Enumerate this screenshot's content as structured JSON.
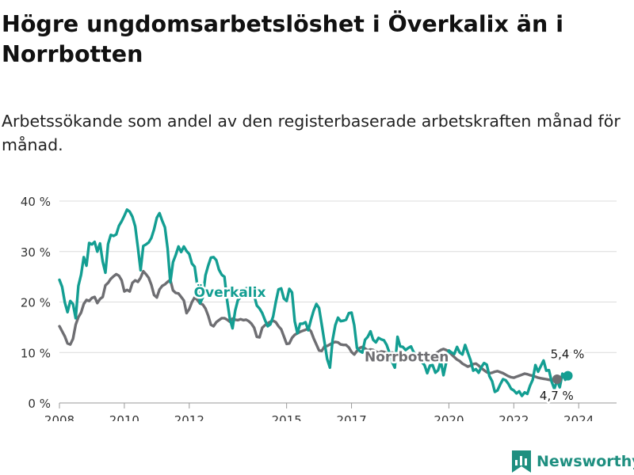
{
  "header": {
    "title": "Högre ungdomsarbetslöshet i Överkalix än i Norrbotten",
    "subtitle": "Arbetssökande som andel av den registerbaserade arbetskraften månad för månad."
  },
  "branding": {
    "name": "Newsworthy",
    "logo_icon": "bar-chart-bookmark-icon",
    "color": "#1f8f80"
  },
  "chart_data": {
    "type": "line",
    "title": "",
    "xlabel": "",
    "ylabel": "",
    "ylim": [
      0,
      40
    ],
    "xlim": [
      "2008-01",
      "2025-03"
    ],
    "y_ticks": [
      0,
      10,
      20,
      30,
      40
    ],
    "y_tick_labels": [
      "0 %",
      "10 %",
      "20 %",
      "30 %",
      "40 %"
    ],
    "x_ticks": [
      "2008",
      "2010",
      "2012",
      "2015",
      "2017",
      "2020",
      "2022",
      "2024"
    ],
    "x_tick_labels": [
      "2008",
      "2010",
      "2012",
      "2015",
      "2017",
      "2020",
      "2022",
      "2024"
    ],
    "grid": "horizontal",
    "legend": "inline labels",
    "series": [
      {
        "name": "Överkalix",
        "color": "#139e92",
        "start": "2008-01",
        "values": [
          24.4,
          23.0,
          19.9,
          18.0,
          20.2,
          19.6,
          16.8,
          23.2,
          25.4,
          28.9,
          27.2,
          31.7,
          31.4,
          31.9,
          30.0,
          31.6,
          28.0,
          25.8,
          31.5,
          33.3,
          33.1,
          33.4,
          35.1,
          36.0,
          37.1,
          38.3,
          37.9,
          36.9,
          35.0,
          30.8,
          26.3,
          31.1,
          31.4,
          31.8,
          32.7,
          34.4,
          36.7,
          37.6,
          36.1,
          34.8,
          30.6,
          23.9,
          27.9,
          29.3,
          31.0,
          29.9,
          31.0,
          30.1,
          29.5,
          27.6,
          27.0,
          23.3,
          19.8,
          20.9,
          25.3,
          27.2,
          28.8,
          28.9,
          28.3,
          26.4,
          25.4,
          25.0,
          20.3,
          16.7,
          14.8,
          18.3,
          20.4,
          20.9,
          22.2,
          22.7,
          22.8,
          22.4,
          21.3,
          19.3,
          18.7,
          17.8,
          16.4,
          15.2,
          15.6,
          17.1,
          20.0,
          22.5,
          22.7,
          20.7,
          20.2,
          22.6,
          21.9,
          16.2,
          13.8,
          15.7,
          15.7,
          16.0,
          14.4,
          16.5,
          18.3,
          19.6,
          18.8,
          15.5,
          12.1,
          8.7,
          7.0,
          12.5,
          15.4,
          16.9,
          16.2,
          16.3,
          16.5,
          17.8,
          17.9,
          15.4,
          10.9,
          10.3,
          10.0,
          12.5,
          13.1,
          14.2,
          12.5,
          12.0,
          12.9,
          12.6,
          12.4,
          11.5,
          10.0,
          8.1,
          7.0,
          13.1,
          11.2,
          11.1,
          10.5,
          10.9,
          11.2,
          10.0,
          9.5,
          9.0,
          8.1,
          7.5,
          5.9,
          7.4,
          7.5,
          6.0,
          6.5,
          8.3,
          5.5,
          8.0,
          10.4,
          10.0,
          9.7,
          11.1,
          10.0,
          9.6,
          11.5,
          10.0,
          8.5,
          6.4,
          6.7,
          6.0,
          7.1,
          7.9,
          7.6,
          5.3,
          4.3,
          2.2,
          2.5,
          3.7,
          4.7,
          4.5,
          3.8,
          2.8,
          2.5,
          1.9,
          2.3,
          1.4,
          2.1,
          1.8,
          3.4,
          4.6,
          7.5,
          6.2,
          7.3,
          8.4,
          6.4,
          6.5,
          4.2,
          2.8,
          4.5,
          3.1,
          5.8,
          4.6,
          5.4
        ]
      },
      {
        "name": "Norrbotten",
        "color": "#6e6e72",
        "start": "2008-01",
        "values": [
          15.2,
          14.2,
          13.2,
          11.8,
          11.6,
          12.7,
          15.5,
          17.0,
          17.9,
          19.6,
          20.4,
          20.2,
          20.8,
          21.0,
          19.8,
          20.6,
          21.0,
          23.3,
          23.8,
          24.6,
          25.1,
          25.5,
          25.2,
          24.3,
          22.1,
          22.4,
          22.1,
          23.8,
          24.3,
          24.0,
          24.8,
          26.1,
          25.5,
          24.8,
          23.4,
          21.4,
          20.9,
          22.5,
          23.2,
          23.5,
          24.0,
          24.4,
          22.3,
          21.8,
          21.7,
          21.0,
          20.3,
          17.8,
          18.6,
          20.0,
          20.9,
          20.4,
          19.7,
          19.5,
          18.7,
          17.3,
          15.5,
          15.2,
          16.0,
          16.4,
          16.8,
          16.8,
          16.5,
          16.1,
          16.7,
          16.5,
          16.4,
          16.6,
          16.4,
          16.5,
          16.2,
          15.7,
          14.9,
          13.1,
          13.0,
          14.9,
          15.4,
          15.8,
          16.1,
          16.3,
          16.0,
          15.2,
          14.6,
          13.2,
          11.7,
          11.8,
          12.9,
          13.5,
          13.8,
          14.1,
          14.3,
          14.5,
          14.8,
          14.2,
          12.8,
          11.6,
          10.4,
          10.3,
          11.2,
          11.3,
          11.6,
          11.9,
          12.1,
          12.0,
          11.6,
          11.5,
          11.5,
          11.0,
          10.1,
          9.6,
          10.3,
          10.9,
          11.1,
          10.8,
          10.4,
          10.6,
          10.5,
          10.2,
          9.9,
          10.2,
          10.1,
          9.9,
          9.6,
          10.0,
          9.8,
          10.1,
          10.0,
          9.5,
          9.2,
          9.3,
          9.5,
          9.3,
          9.1,
          9.0,
          8.7,
          8.6,
          8.9,
          9.2,
          9.4,
          9.8,
          10.1,
          10.5,
          10.7,
          10.5,
          10.2,
          9.6,
          9.1,
          8.6,
          8.3,
          7.8,
          7.5,
          7.2,
          7.4,
          7.7,
          7.8,
          7.4,
          6.9,
          6.5,
          6.1,
          5.9,
          6.0,
          6.2,
          6.3,
          6.1,
          5.9,
          5.6,
          5.3,
          5.1,
          5.0,
          5.2,
          5.4,
          5.6,
          5.8,
          5.7,
          5.5,
          5.4,
          5.2,
          5.0,
          4.9,
          4.8,
          4.7,
          4.6,
          4.5,
          4.6,
          4.7
        ]
      }
    ],
    "annotations": [
      {
        "series": "Överkalix",
        "label": "Överkalix",
        "placement": "mid-2013"
      },
      {
        "series": "Norrbotten",
        "label": "Norrbotten",
        "placement": "2018"
      },
      {
        "series": "Överkalix",
        "label": "5,4 %",
        "placement": "end-above"
      },
      {
        "series": "Norrbotten",
        "label": "4,7 %",
        "placement": "end-below"
      }
    ]
  }
}
